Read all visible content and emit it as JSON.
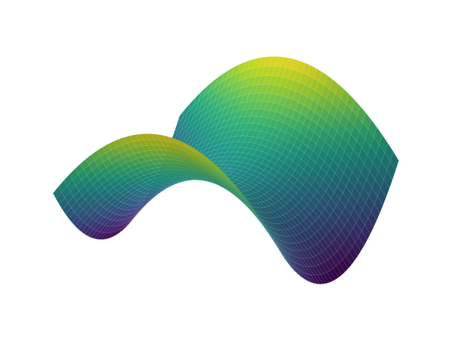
{
  "chart_data": {
    "type": "surface",
    "title": "",
    "colormap": "viridis",
    "colormap_stops": [
      "#440154",
      "#482878",
      "#3e4989",
      "#31688e",
      "#26828e",
      "#1f9e89",
      "#35b779",
      "#6ece58",
      "#b5de2b",
      "#fde725"
    ],
    "function": "z = x^2 - y^2",
    "x_range": [
      -1,
      1
    ],
    "y_range": [
      -1,
      1
    ],
    "z_range": [
      -1,
      1
    ],
    "grid_resolution": 40,
    "axes_visible": false,
    "grid": false,
    "view_elevation_deg": 30,
    "view_azimuth_deg": -60,
    "edge_color": "#ffffff"
  }
}
